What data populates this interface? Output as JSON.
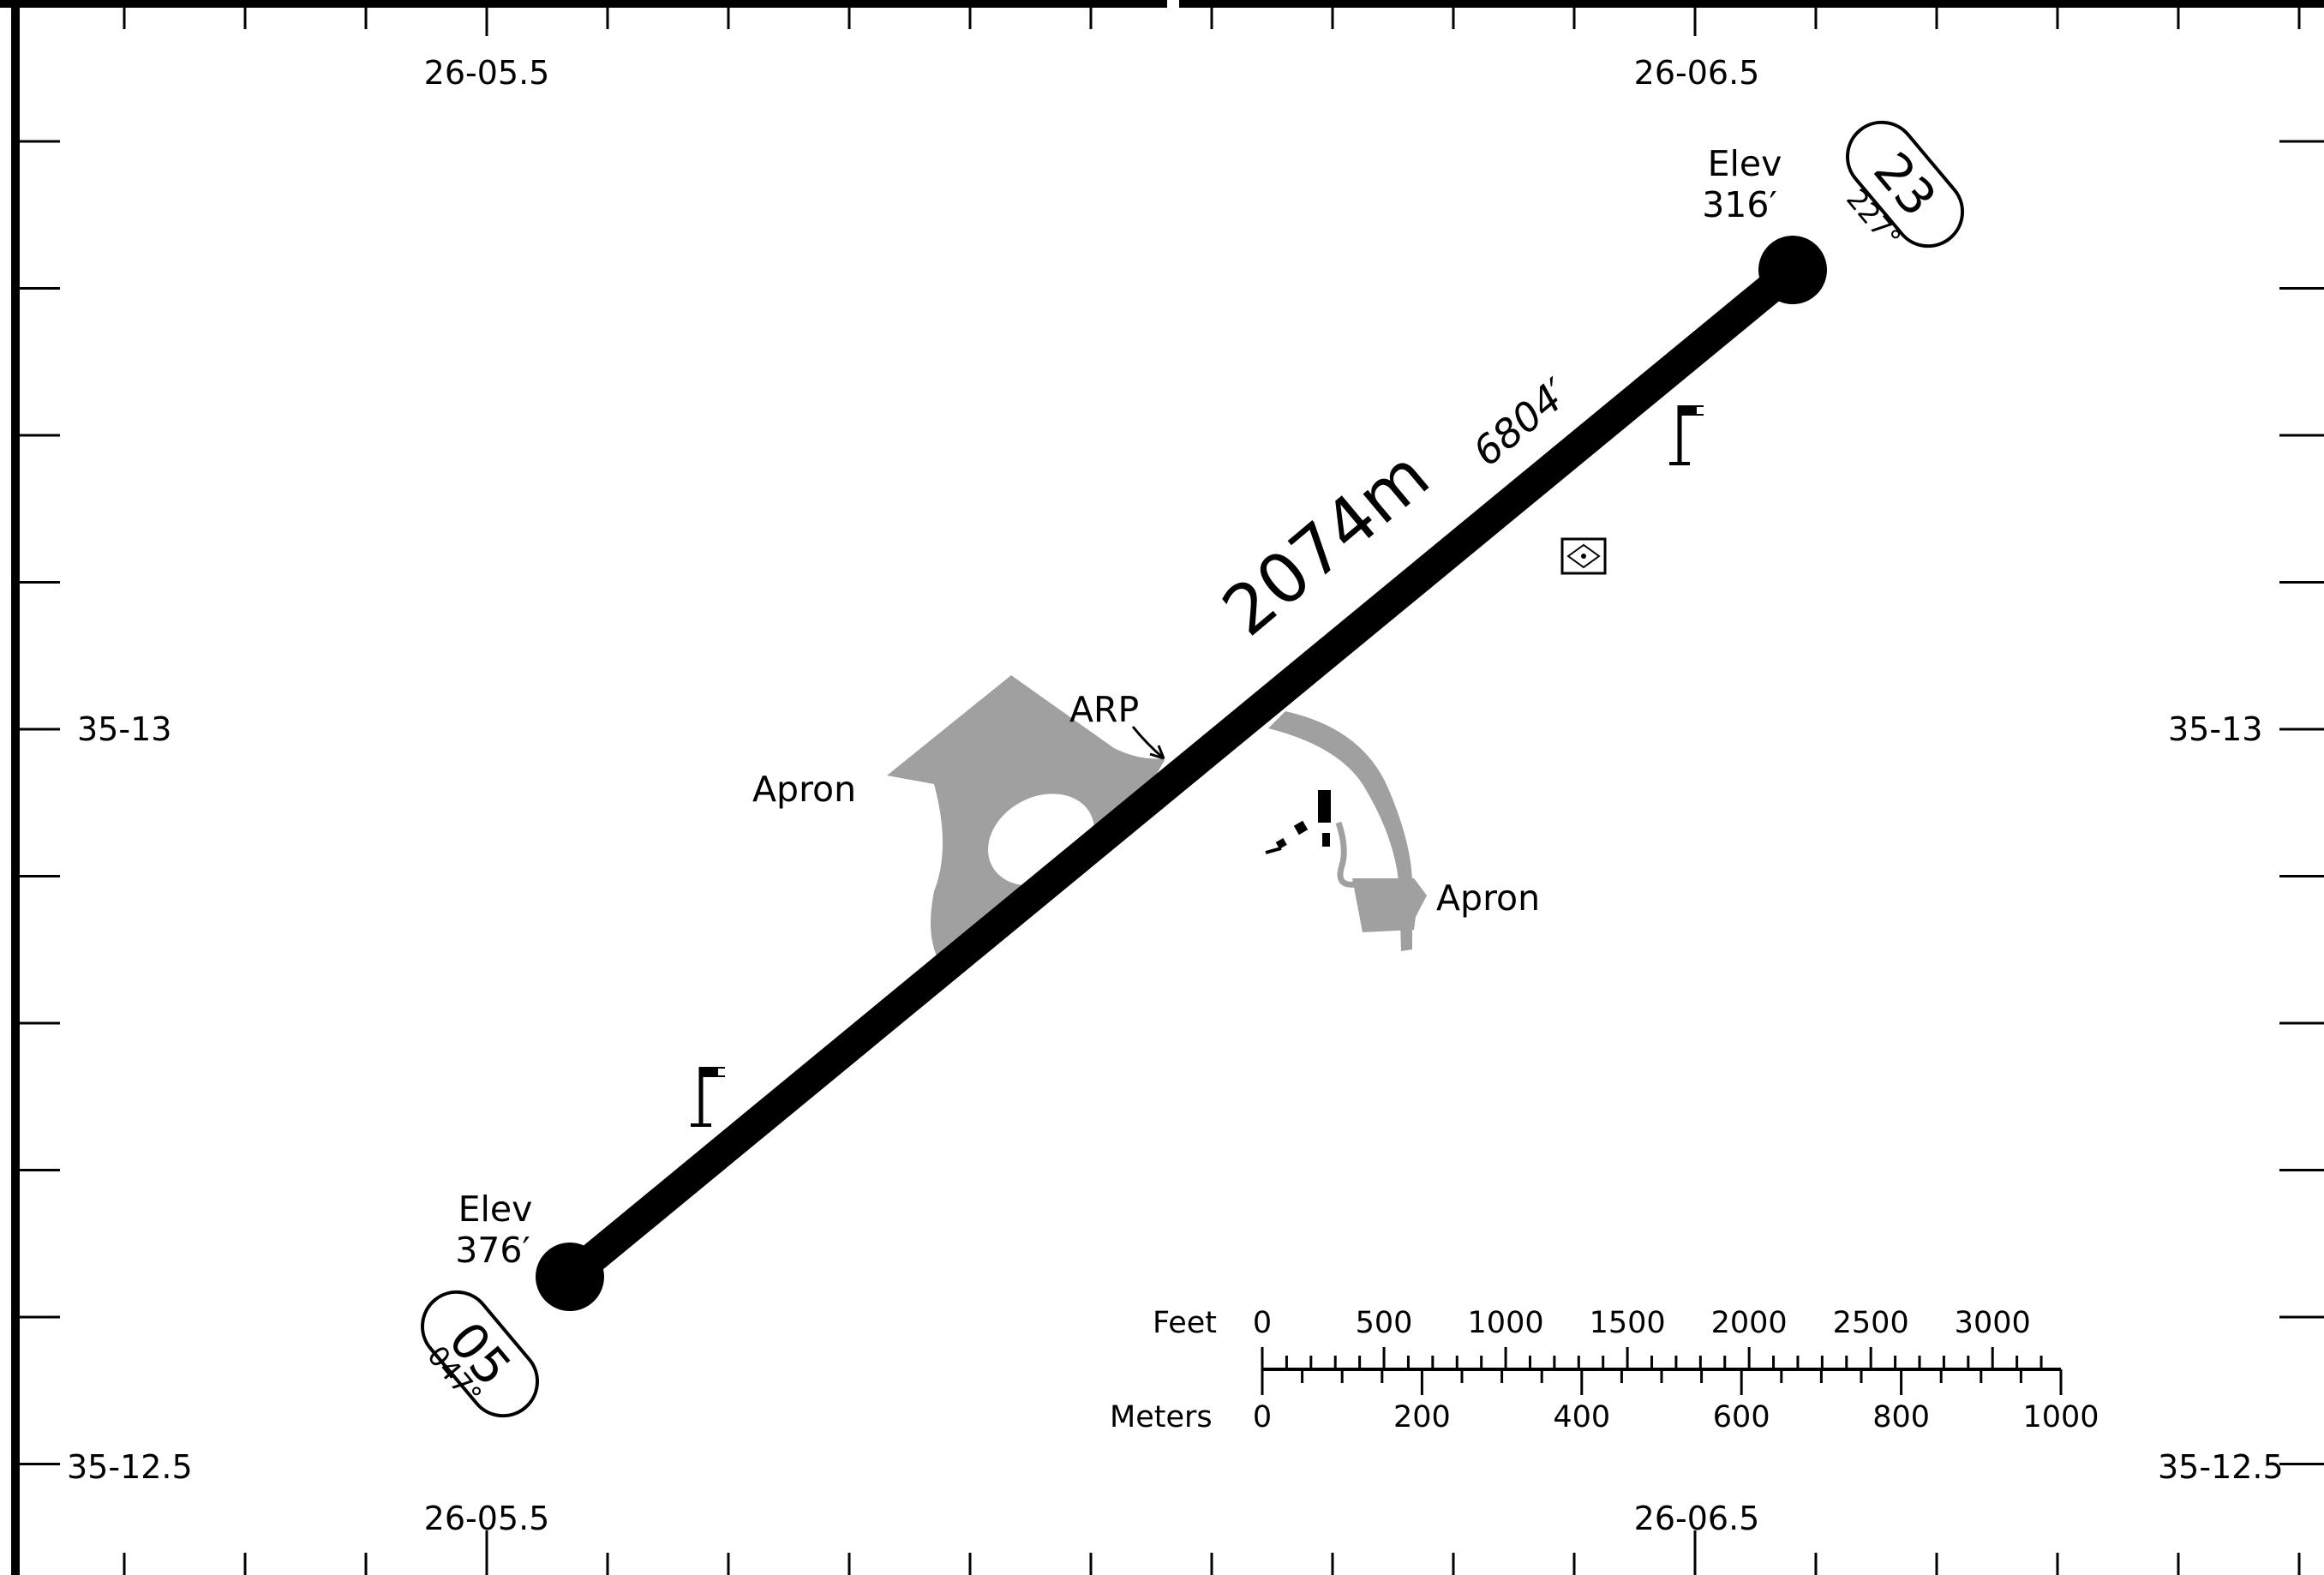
{
  "chart": {
    "runway": {
      "length_m": "2074m",
      "length_ft": "6804′",
      "end_sw": {
        "designator": "05",
        "heading": "047°",
        "elev_label": "Elev",
        "elev_value": "376′"
      },
      "end_ne": {
        "designator": "23",
        "heading": "227°",
        "elev_label": "Elev",
        "elev_value": "316′"
      }
    },
    "labels": {
      "arp": "ARP",
      "apron_west": "Apron",
      "apron_east": "Apron"
    },
    "coordinates": {
      "lon_top_left": "26-05.5",
      "lon_top_right": "26-06.5",
      "lon_bottom_left": "26-05.5",
      "lon_bottom_right": "26-06.5",
      "lat_mid_left": "35-13",
      "lat_mid_right": "35-13",
      "lat_bottom_left": "35-12.5",
      "lat_bottom_right": "35-12.5"
    },
    "scale": {
      "feet_label": "Feet",
      "meters_label": "Meters",
      "feet_ticks": [
        "0",
        "500",
        "1000",
        "1500",
        "2000",
        "2500",
        "3000"
      ],
      "meter_ticks": [
        "0",
        "200",
        "400",
        "600",
        "800",
        "1000"
      ]
    },
    "icons": [
      "windsock-icon",
      "windsock-icon",
      "wind-direction-indicator-icon",
      "buildings-icon"
    ]
  }
}
